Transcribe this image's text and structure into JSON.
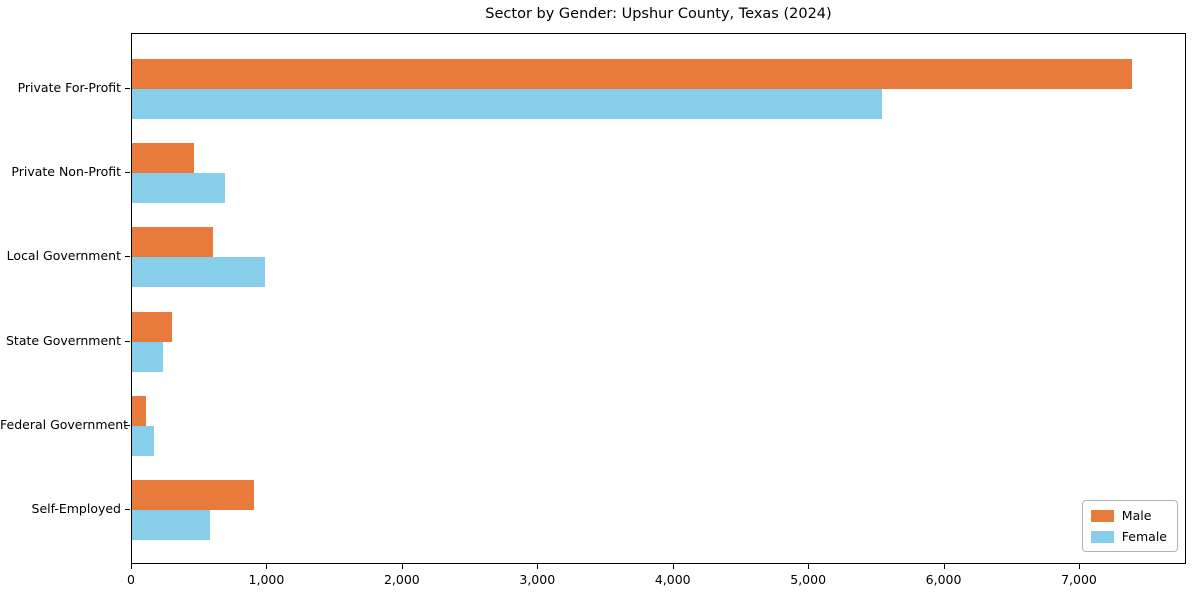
{
  "title": "Sector by Gender: Upshur County, Texas (2024)",
  "colors": {
    "male": "#e87b3c",
    "female": "#87ceeb",
    "spine": "#000000",
    "legend_border": "#b3b3b3",
    "background": "#ffffff"
  },
  "legend": {
    "items": [
      {
        "label": "Male",
        "color": "#e87b3c"
      },
      {
        "label": "Female",
        "color": "#87ceeb"
      }
    ],
    "position": "lower right"
  },
  "chart_data": {
    "type": "bar",
    "orientation": "horizontal",
    "title": "Sector by Gender: Upshur County, Texas (2024)",
    "categories": [
      "Private For-Profit",
      "Private Non-Profit",
      "Local Government",
      "State Government",
      "Federal Government",
      "Self-Employed"
    ],
    "series": [
      {
        "name": "Male",
        "color": "#e87b3c",
        "values": [
          7400,
          460,
          600,
          295,
          100,
          900
        ]
      },
      {
        "name": "Female",
        "color": "#87ceeb",
        "values": [
          5550,
          690,
          985,
          230,
          165,
          575
        ]
      }
    ],
    "xlabel": "",
    "ylabel": "",
    "xlim": [
      0,
      7790
    ],
    "xticks": [
      0,
      1000,
      2000,
      3000,
      4000,
      5000,
      6000,
      7000
    ],
    "xtick_labels": [
      "0",
      "1,000",
      "2,000",
      "3,000",
      "4,000",
      "5,000",
      "6,000",
      "7,000"
    ],
    "grid": false,
    "legend_position": "lower right"
  }
}
